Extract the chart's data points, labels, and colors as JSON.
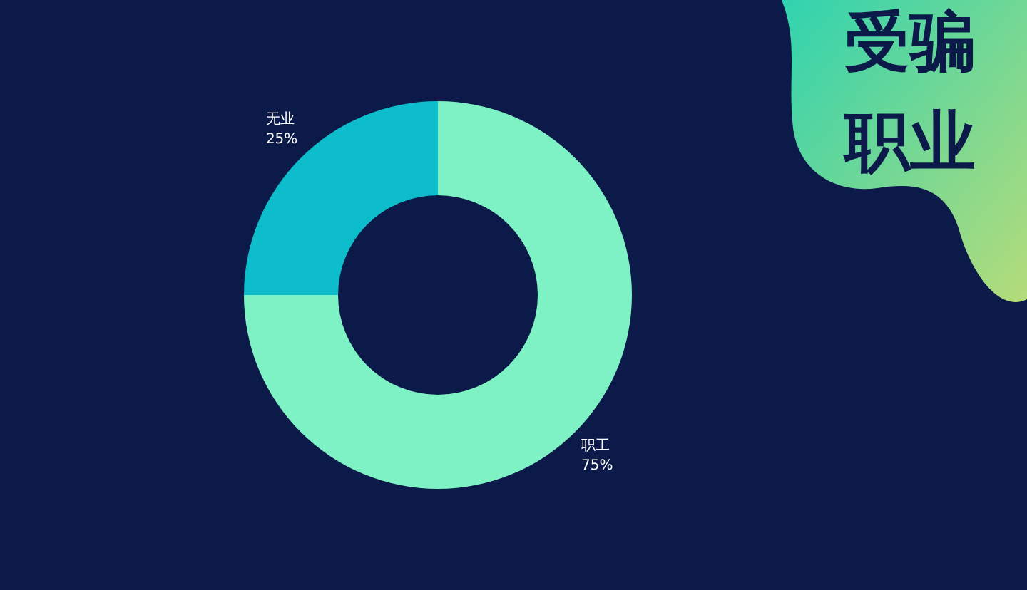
{
  "chart_data": {
    "type": "donut",
    "title": "受骗职业",
    "categories": [
      "职工",
      "无业"
    ],
    "values": [
      75,
      25
    ],
    "colors": [
      "#7ef2c5",
      "#0ebdcb"
    ],
    "value_labels": [
      "75%",
      "25%"
    ]
  }
}
